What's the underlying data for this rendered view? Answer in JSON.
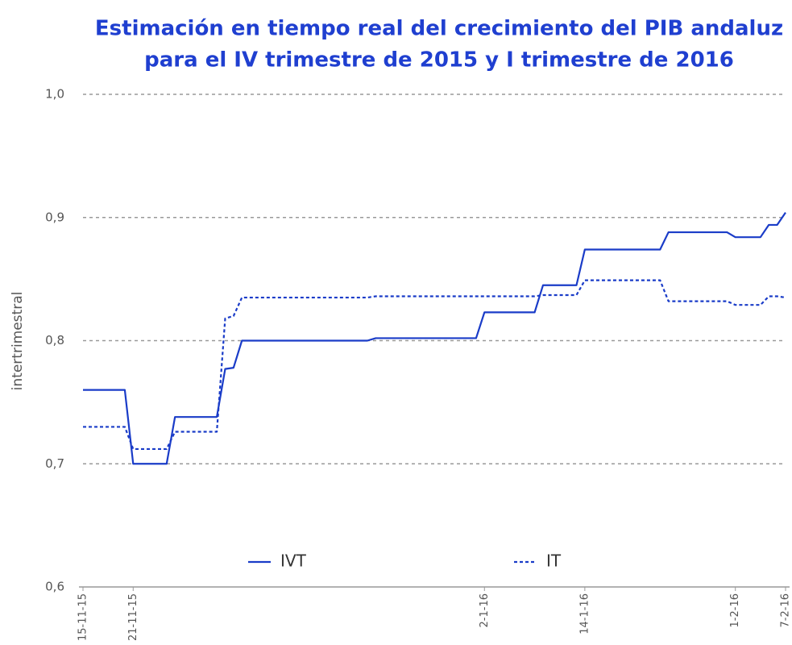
{
  "chart_data": {
    "type": "line",
    "title": [
      "Estimación en tiempo real del crecimiento del PIB andaluz",
      "para el IV trimestre de 2015 y I trimestre de 2016"
    ],
    "y_label": "intertrimestral",
    "categories": [
      "15-11-15",
      null,
      null,
      null,
      null,
      null,
      "21-11-15",
      null,
      null,
      null,
      null,
      null,
      null,
      null,
      null,
      null,
      null,
      null,
      null,
      null,
      null,
      null,
      null,
      null,
      null,
      null,
      null,
      null,
      null,
      null,
      null,
      null,
      null,
      null,
      null,
      null,
      null,
      null,
      null,
      null,
      null,
      null,
      null,
      null,
      null,
      null,
      null,
      null,
      "2-1-16",
      null,
      null,
      null,
      null,
      null,
      null,
      null,
      null,
      null,
      null,
      null,
      "14-1-16",
      null,
      null,
      null,
      null,
      null,
      null,
      null,
      null,
      null,
      null,
      null,
      null,
      null,
      null,
      null,
      null,
      null,
      "1-2-16",
      null,
      null,
      null,
      null,
      null,
      "7-2-16"
    ],
    "series": [
      {
        "name": "IVT",
        "color": "#1a3cc8",
        "style": "solid",
        "values": [
          0.76,
          0.76,
          0.76,
          0.76,
          0.76,
          0.76,
          0.7,
          0.7,
          0.7,
          0.7,
          0.7,
          0.738,
          0.738,
          0.738,
          0.738,
          0.738,
          0.738,
          0.777,
          0.778,
          0.8,
          0.8,
          0.8,
          0.8,
          0.8,
          0.8,
          0.8,
          0.8,
          0.8,
          0.8,
          0.8,
          0.8,
          0.8,
          0.8,
          0.8,
          0.8,
          0.802,
          0.802,
          0.802,
          0.802,
          0.802,
          0.802,
          0.802,
          0.802,
          0.802,
          0.802,
          0.802,
          0.802,
          0.802,
          0.823,
          0.823,
          0.823,
          0.823,
          0.823,
          0.823,
          0.823,
          0.845,
          0.845,
          0.845,
          0.845,
          0.845,
          0.874,
          0.874,
          0.874,
          0.874,
          0.874,
          0.874,
          0.874,
          0.874,
          0.874,
          0.874,
          0.888,
          0.888,
          0.888,
          0.888,
          0.888,
          0.888,
          0.888,
          0.888,
          0.884,
          0.884,
          0.884,
          0.884,
          0.894,
          0.894,
          0.904
        ]
      },
      {
        "name": "IT",
        "color": "#1a3cc8",
        "style": "dashed",
        "values": [
          0.73,
          0.73,
          0.73,
          0.73,
          0.73,
          0.73,
          0.712,
          0.712,
          0.712,
          0.712,
          0.712,
          0.726,
          0.726,
          0.726,
          0.726,
          0.726,
          0.726,
          0.818,
          0.82,
          0.835,
          0.835,
          0.835,
          0.835,
          0.835,
          0.835,
          0.835,
          0.835,
          0.835,
          0.835,
          0.835,
          0.835,
          0.835,
          0.835,
          0.835,
          0.835,
          0.836,
          0.836,
          0.836,
          0.836,
          0.836,
          0.836,
          0.836,
          0.836,
          0.836,
          0.836,
          0.836,
          0.836,
          0.836,
          0.836,
          0.836,
          0.836,
          0.836,
          0.836,
          0.836,
          0.836,
          0.837,
          0.837,
          0.837,
          0.837,
          0.837,
          0.849,
          0.849,
          0.849,
          0.849,
          0.849,
          0.849,
          0.849,
          0.849,
          0.849,
          0.849,
          0.832,
          0.832,
          0.832,
          0.832,
          0.832,
          0.832,
          0.832,
          0.832,
          0.829,
          0.829,
          0.829,
          0.829,
          0.836,
          0.836,
          0.835
        ]
      }
    ],
    "ylim": [
      0.6,
      1.0
    ],
    "yticks": [
      {
        "value": 0.6,
        "label": "0,6"
      },
      {
        "value": 0.7,
        "label": "0,7"
      },
      {
        "value": 0.8,
        "label": "0,8"
      },
      {
        "value": 0.9,
        "label": "0,9"
      },
      {
        "value": 1.0,
        "label": "1,0"
      }
    ],
    "grid": true,
    "legend": "bottom"
  }
}
